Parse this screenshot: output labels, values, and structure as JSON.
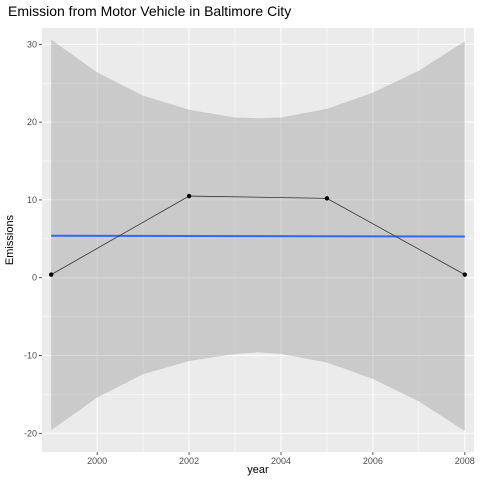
{
  "chart_data": {
    "type": "line",
    "title": "Emission from Motor Vehicle in Baltimore City",
    "xlabel": "year",
    "ylabel": "Emissions",
    "xlim": [
      1998.8,
      2008.2
    ],
    "ylim": [
      -22.4,
      32.1
    ],
    "x_ticks": [
      2000,
      2002,
      2004,
      2006,
      2008
    ],
    "y_ticks": [
      -20,
      -10,
      0,
      10,
      20,
      30
    ],
    "grid": true,
    "series": [
      {
        "values": [
          {
            "x": 1999,
            "y": 0.4
          },
          {
            "x": 2002,
            "y": 10.5
          },
          {
            "x": 2005,
            "y": 10.2
          },
          {
            "x": 2008,
            "y": 0.4
          }
        ]
      }
    ],
    "trend_line": {
      "color": "#3366FF",
      "start": {
        "x": 1999,
        "y": 5.4
      },
      "end": {
        "x": 2008,
        "y": 5.3
      }
    },
    "confidence_band": {
      "color": "#999999",
      "upper": [
        {
          "x": 1999,
          "y": 30.6
        },
        {
          "x": 2000,
          "y": 26.4
        },
        {
          "x": 2001,
          "y": 23.4
        },
        {
          "x": 2002,
          "y": 21.6
        },
        {
          "x": 2003,
          "y": 20.6
        },
        {
          "x": 2003.5,
          "y": 20.5
        },
        {
          "x": 2004,
          "y": 20.6
        },
        {
          "x": 2005,
          "y": 21.7
        },
        {
          "x": 2006,
          "y": 23.8
        },
        {
          "x": 2007,
          "y": 26.6
        },
        {
          "x": 2008,
          "y": 30.4
        }
      ],
      "lower": [
        {
          "x": 1999,
          "y": -19.6
        },
        {
          "x": 2000,
          "y": -15.4
        },
        {
          "x": 2001,
          "y": -12.4
        },
        {
          "x": 2002,
          "y": -10.7
        },
        {
          "x": 2003,
          "y": -9.8
        },
        {
          "x": 2003.5,
          "y": -9.6
        },
        {
          "x": 2004,
          "y": -9.8
        },
        {
          "x": 2005,
          "y": -10.9
        },
        {
          "x": 2006,
          "y": -13.0
        },
        {
          "x": 2007,
          "y": -15.9
        },
        {
          "x": 2008,
          "y": -19.7
        }
      ]
    },
    "colors": {
      "panel_background": "#EBEBEB",
      "grid": "#FFFFFF",
      "line": "#333333",
      "point": "#000000"
    }
  }
}
